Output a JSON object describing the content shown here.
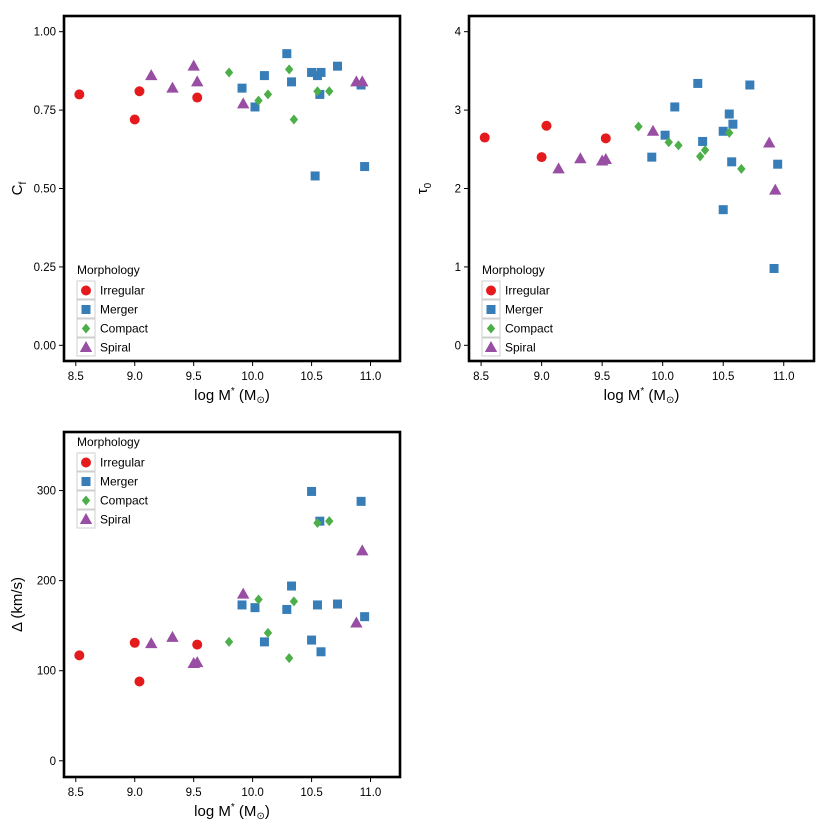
{
  "colors": {
    "Irregular": "#E41A1C",
    "Merger": "#377EB8",
    "Compact": "#4DAF4A",
    "Spiral": "#984EA3"
  },
  "shapes": {
    "Irregular": "circle",
    "Merger": "square",
    "Compact": "diamond",
    "Spiral": "triangle"
  },
  "chart_data": [
    {
      "type": "scatter",
      "id": "cf",
      "ylabel_main": "C",
      "ylabel_sub": "f",
      "xlabel": {
        "main": "log M",
        "sup": "*",
        "unit_open": " (M",
        "unit_sub": "⊙",
        "unit_close": ")"
      },
      "xlim": [
        8.4,
        11.25
      ],
      "ylim": [
        -0.05,
        1.05
      ],
      "xticks": [
        8.5,
        9.0,
        9.5,
        10.0,
        10.5,
        11.0
      ],
      "xtick_labels": [
        "8.5",
        "9.0",
        "9.5",
        "10.0",
        "10.5",
        "11.0"
      ],
      "yticks": [
        0,
        0.25,
        0.5,
        0.75,
        1.0
      ],
      "ytick_labels": [
        "0.00",
        "0.25",
        "0.50",
        "0.75",
        "1.00"
      ],
      "legend": {
        "title": "Morphology",
        "position": "bottom-left",
        "entries": [
          "Irregular",
          "Merger",
          "Compact",
          "Spiral"
        ]
      },
      "series": [
        {
          "name": "Irregular",
          "x": [
            8.53,
            9.0,
            9.04,
            9.53
          ],
          "y": [
            0.8,
            0.72,
            0.81,
            0.79
          ]
        },
        {
          "name": "Merger",
          "x": [
            9.91,
            10.02,
            10.1,
            10.29,
            10.33,
            10.5,
            10.53,
            10.55,
            10.57,
            10.58,
            10.72,
            10.92,
            10.95
          ],
          "y": [
            0.82,
            0.76,
            0.86,
            0.93,
            0.84,
            0.87,
            0.54,
            0.86,
            0.8,
            0.87,
            0.89,
            0.83,
            0.57
          ]
        },
        {
          "name": "Compact",
          "x": [
            9.8,
            10.05,
            10.13,
            10.31,
            10.35,
            10.55,
            10.65
          ],
          "y": [
            0.87,
            0.78,
            0.8,
            0.88,
            0.72,
            0.81,
            0.81
          ]
        },
        {
          "name": "Spiral",
          "x": [
            9.14,
            9.32,
            9.5,
            9.53,
            9.92,
            10.88,
            10.93
          ],
          "y": [
            0.86,
            0.82,
            0.89,
            0.84,
            0.77,
            0.84,
            0.84
          ]
        }
      ]
    },
    {
      "type": "scatter",
      "id": "tau",
      "ylabel_main": "τ",
      "ylabel_sub": "0",
      "xlabel": {
        "main": "log M",
        "sup": "*",
        "unit_open": " (M",
        "unit_sub": "⊙",
        "unit_close": ")"
      },
      "xlim": [
        8.4,
        11.25
      ],
      "ylim": [
        -0.2,
        4.2
      ],
      "xticks": [
        8.5,
        9.0,
        9.5,
        10.0,
        10.5,
        11.0
      ],
      "xtick_labels": [
        "8.5",
        "9.0",
        "9.5",
        "10.0",
        "10.5",
        "11.0"
      ],
      "yticks": [
        0,
        1,
        2,
        3,
        4
      ],
      "ytick_labels": [
        "0",
        "1",
        "2",
        "3",
        "4"
      ],
      "legend": {
        "title": "Morphology",
        "position": "bottom-left",
        "entries": [
          "Irregular",
          "Merger",
          "Compact",
          "Spiral"
        ]
      },
      "series": [
        {
          "name": "Irregular",
          "x": [
            8.53,
            9.0,
            9.04,
            9.53
          ],
          "y": [
            2.65,
            2.4,
            2.8,
            2.64
          ]
        },
        {
          "name": "Merger",
          "x": [
            9.91,
            10.02,
            10.1,
            10.29,
            10.33,
            10.5,
            10.5,
            10.55,
            10.57,
            10.58,
            10.72,
            10.92,
            10.95
          ],
          "y": [
            2.4,
            2.68,
            3.04,
            3.34,
            2.6,
            1.73,
            2.73,
            2.95,
            2.34,
            2.82,
            3.32,
            0.98,
            2.31
          ]
        },
        {
          "name": "Compact",
          "x": [
            9.8,
            10.05,
            10.13,
            10.31,
            10.35,
            10.55,
            10.65
          ],
          "y": [
            2.79,
            2.59,
            2.55,
            2.41,
            2.49,
            2.71,
            2.25
          ]
        },
        {
          "name": "Spiral",
          "x": [
            9.14,
            9.32,
            9.5,
            9.53,
            9.92,
            10.88,
            10.93
          ],
          "y": [
            2.25,
            2.38,
            2.35,
            2.37,
            2.73,
            2.58,
            1.98
          ]
        }
      ]
    },
    {
      "type": "scatter",
      "id": "delta",
      "ylabel_main": "Δ (km/s)",
      "ylabel_sub": "",
      "xlabel": {
        "main": "log M",
        "sup": "*",
        "unit_open": " (M",
        "unit_sub": "⊙",
        "unit_close": ")"
      },
      "xlim": [
        8.4,
        11.25
      ],
      "ylim": [
        -18,
        365
      ],
      "xticks": [
        8.5,
        9.0,
        9.5,
        10.0,
        10.5,
        11.0
      ],
      "xtick_labels": [
        "8.5",
        "9.0",
        "9.5",
        "10.0",
        "10.5",
        "11.0"
      ],
      "yticks": [
        0,
        100,
        200,
        300
      ],
      "ytick_labels": [
        "0",
        "100",
        "200",
        "300"
      ],
      "legend": {
        "title": "Morphology",
        "position": "top-left",
        "entries": [
          "Irregular",
          "Merger",
          "Compact",
          "Spiral"
        ]
      },
      "series": [
        {
          "name": "Irregular",
          "x": [
            8.53,
            9.0,
            9.04,
            9.53
          ],
          "y": [
            117,
            131,
            88,
            129
          ]
        },
        {
          "name": "Merger",
          "x": [
            9.91,
            10.02,
            10.1,
            10.29,
            10.33,
            10.5,
            10.5,
            10.55,
            10.57,
            10.58,
            10.72,
            10.92,
            10.95
          ],
          "y": [
            173,
            170,
            132,
            168,
            194,
            299,
            134,
            173,
            266,
            121,
            174,
            288,
            160
          ]
        },
        {
          "name": "Compact",
          "x": [
            9.8,
            10.05,
            10.13,
            10.31,
            10.35,
            10.55,
            10.65
          ],
          "y": [
            132,
            179,
            142,
            114,
            177,
            264,
            266
          ]
        },
        {
          "name": "Spiral",
          "x": [
            9.14,
            9.32,
            9.5,
            9.53,
            9.92,
            10.88,
            10.93
          ],
          "y": [
            130,
            137,
            108,
            109,
            185,
            153,
            233
          ]
        }
      ]
    }
  ]
}
